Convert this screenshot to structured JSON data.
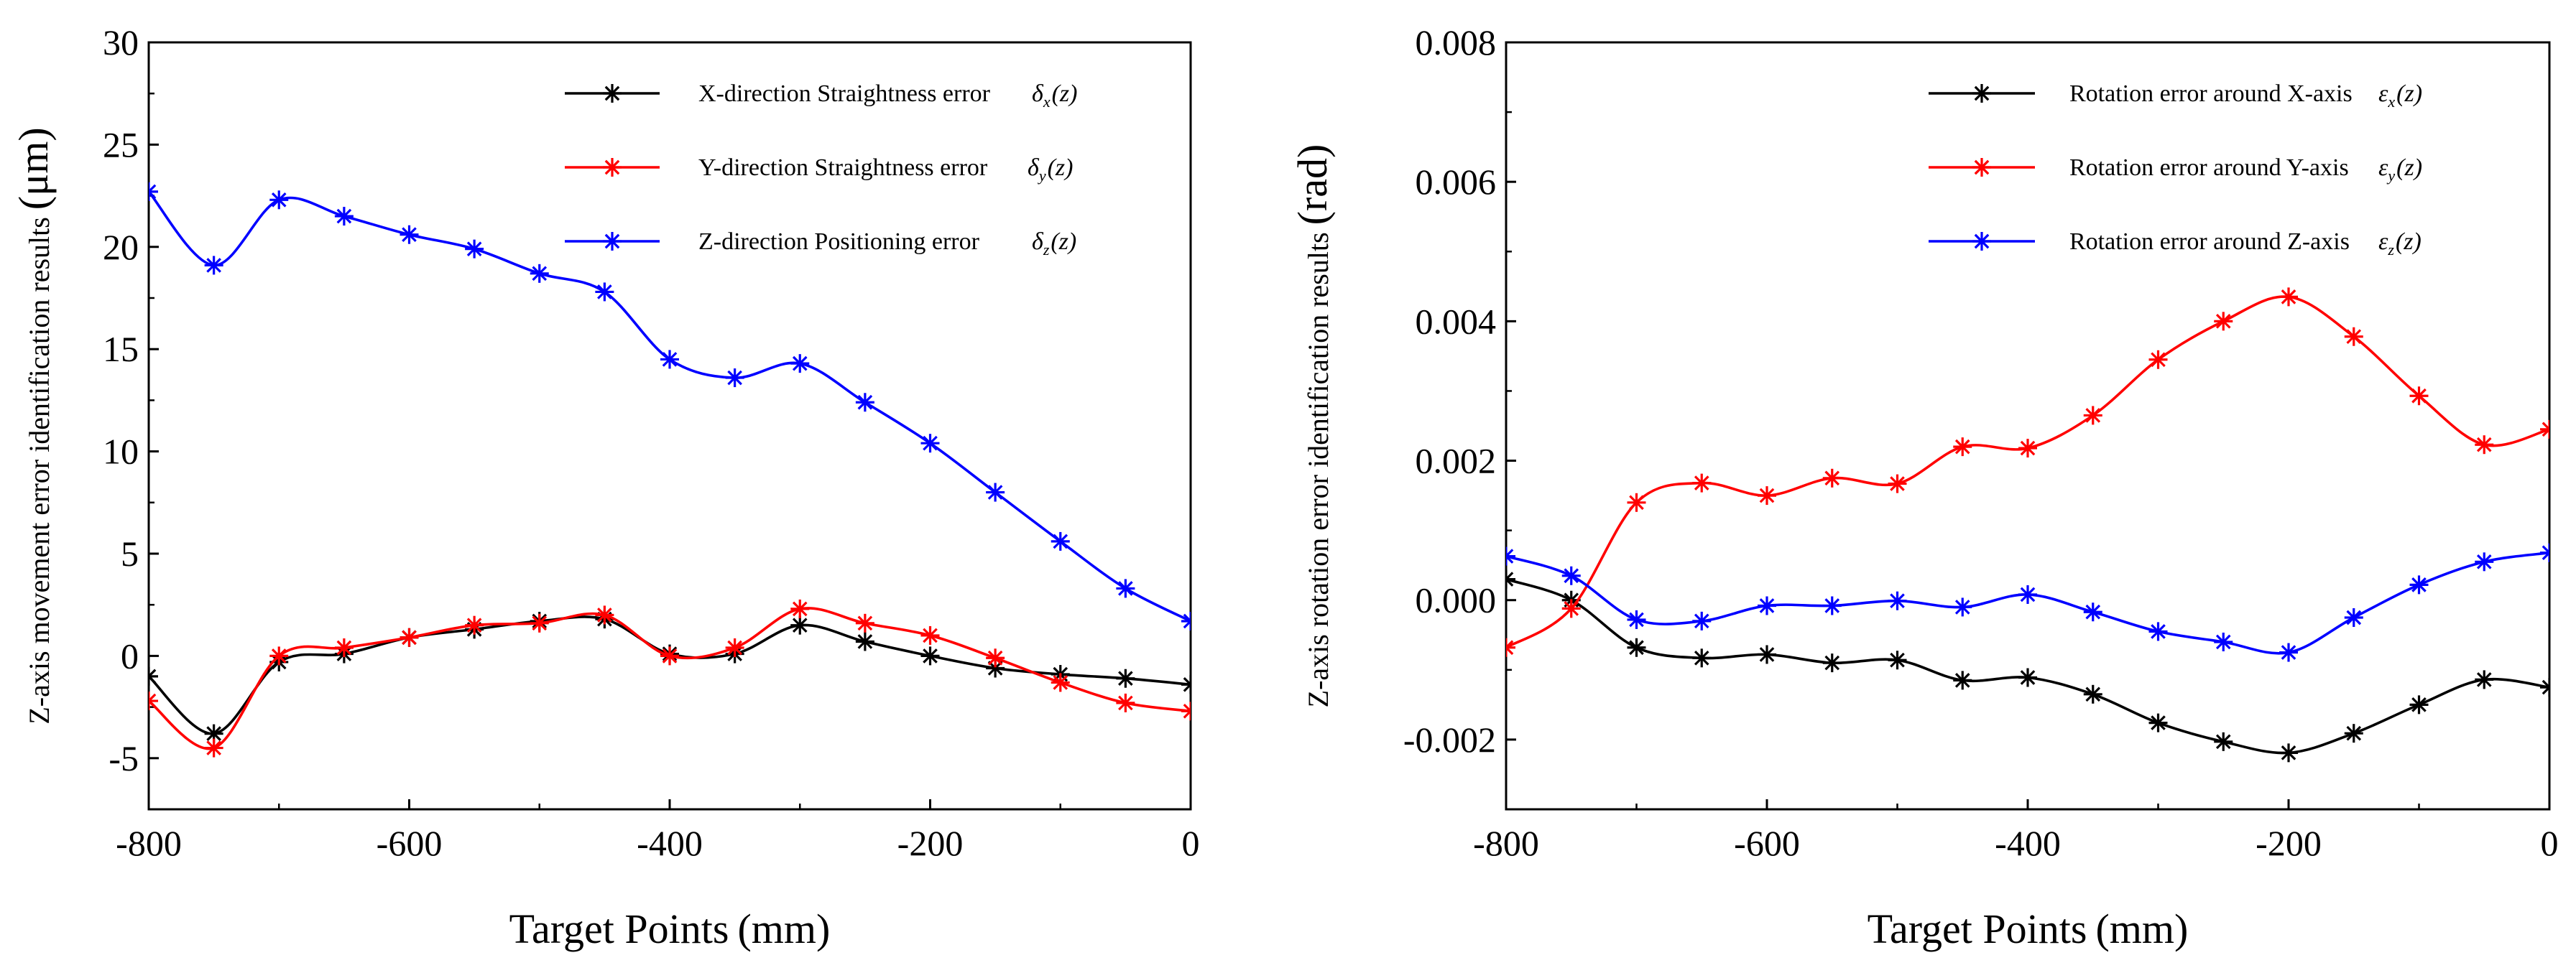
{
  "chart_data": [
    {
      "type": "line",
      "x": [
        -800,
        -750,
        -700,
        -650,
        -600,
        -550,
        -500,
        -450,
        -400,
        -350,
        -300,
        -250,
        -200,
        -150,
        -100,
        -50,
        0
      ],
      "xlabel": "Target Points",
      "xlabel_unit": "(mm)",
      "ylabel": "Z-axis movement error identification results",
      "ylabel_unit": "(μm)",
      "xlim": [
        -800,
        0
      ],
      "ylim": [
        -7.5,
        30
      ],
      "xticks": [
        "-800",
        "-600",
        "-400",
        "-200",
        "0"
      ],
      "xtick_values": [
        -800,
        -600,
        -400,
        -200,
        0
      ],
      "yticks": [
        "-5",
        "0",
        "5",
        "10",
        "15",
        "20",
        "25",
        "30"
      ],
      "ytick_values": [
        -5,
        0,
        5,
        10,
        15,
        20,
        25,
        30
      ],
      "legend_position": "top-right",
      "series": [
        {
          "name": "X-direction Straightness error",
          "symbol": "δ",
          "subscript": "x",
          "arg": "(z)",
          "color": "#000000",
          "marker": "asterisk",
          "values": [
            -1.0,
            -3.8,
            -0.3,
            0.1,
            0.9,
            1.3,
            1.7,
            1.8,
            0.1,
            0.1,
            1.5,
            0.7,
            0.0,
            -0.6,
            -0.9,
            -1.1,
            -1.4
          ]
        },
        {
          "name": "Y-direction Straightness error",
          "symbol": "δ",
          "subscript": "y",
          "arg": "(z)",
          "color": "#ff0000",
          "marker": "asterisk",
          "values": [
            -2.2,
            -4.5,
            0.0,
            0.4,
            0.9,
            1.5,
            1.6,
            2.0,
            0.0,
            0.4,
            2.3,
            1.6,
            1.0,
            -0.1,
            -1.3,
            -2.3,
            -2.7
          ]
        },
        {
          "name": "Z-direction Positioning error",
          "symbol": "δ",
          "subscript": "z",
          "arg": "(z)",
          "color": "#0000ff",
          "marker": "asterisk",
          "values": [
            22.7,
            19.1,
            22.3,
            21.5,
            20.6,
            19.9,
            18.7,
            17.8,
            14.5,
            13.6,
            14.3,
            12.4,
            10.4,
            8.0,
            5.6,
            3.3,
            1.7
          ]
        }
      ]
    },
    {
      "type": "line",
      "x": [
        -800,
        -750,
        -700,
        -650,
        -600,
        -550,
        -500,
        -450,
        -400,
        -350,
        -300,
        -250,
        -200,
        -150,
        -100,
        -50,
        0
      ],
      "xlabel": "Target Points",
      "xlabel_unit": "(mm)",
      "ylabel": "Z-axis rotation error identification results",
      "ylabel_unit": "(rad)",
      "xlim": [
        -800,
        0
      ],
      "ylim": [
        -0.003,
        0.008
      ],
      "xticks": [
        "-800",
        "-600",
        "-400",
        "-200",
        "0"
      ],
      "xtick_values": [
        -800,
        -600,
        -400,
        -200,
        0
      ],
      "yticks": [
        "-0.002",
        "0.000",
        "0.002",
        "0.004",
        "0.006",
        "0.008"
      ],
      "ytick_values": [
        -0.002,
        0.0,
        0.002,
        0.004,
        0.006,
        0.008
      ],
      "legend_position": "top-right",
      "series": [
        {
          "name": "Rotation error around X-axis",
          "symbol": "ε",
          "subscript": "x",
          "arg": "(z)",
          "color": "#000000",
          "marker": "asterisk",
          "values": [
            0.0003,
            0.0,
            -0.00068,
            -0.00083,
            -0.00078,
            -0.0009,
            -0.00086,
            -0.00115,
            -0.00111,
            -0.00135,
            -0.00176,
            -0.00203,
            -0.00219,
            -0.00191,
            -0.0015,
            -0.00114,
            -0.00125
          ]
        },
        {
          "name": "Rotation error around Y-axis",
          "symbol": "ε",
          "subscript": "y",
          "arg": "(z)",
          "color": "#ff0000",
          "marker": "asterisk",
          "values": [
            -0.00068,
            -0.00012,
            0.0014,
            0.00168,
            0.0015,
            0.00175,
            0.00167,
            0.0022,
            0.00218,
            0.00265,
            0.00345,
            0.004,
            0.00435,
            0.00378,
            0.00293,
            0.00223,
            0.00245
          ]
        },
        {
          "name": "Rotation error around Z-axis",
          "symbol": "ε",
          "subscript": "z",
          "arg": "(z)",
          "color": "#0000ff",
          "marker": "asterisk",
          "values": [
            0.00063,
            0.00035,
            -0.00028,
            -0.0003,
            -8e-05,
            -8e-05,
            -1e-05,
            -0.0001,
            8e-05,
            -0.00017,
            -0.00045,
            -0.0006,
            -0.00075,
            -0.00025,
            0.00022,
            0.00055,
            0.00068
          ]
        }
      ]
    }
  ]
}
